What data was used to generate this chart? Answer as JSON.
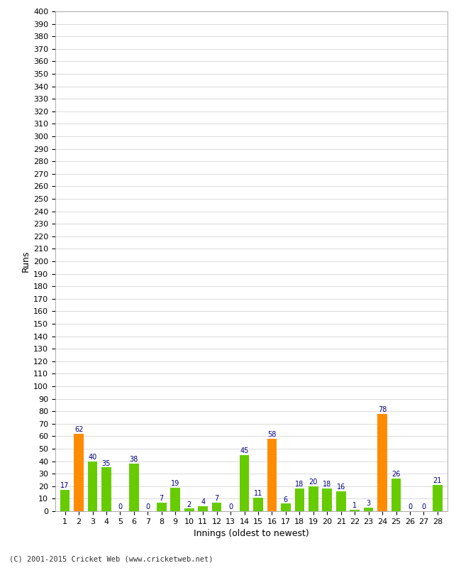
{
  "values": [
    17,
    62,
    40,
    35,
    0,
    38,
    0,
    7,
    19,
    2,
    4,
    7,
    0,
    45,
    11,
    58,
    6,
    18,
    20,
    18,
    16,
    1,
    3,
    78,
    26,
    0,
    0,
    21
  ],
  "innings": [
    1,
    2,
    3,
    4,
    5,
    6,
    7,
    8,
    9,
    10,
    11,
    12,
    13,
    14,
    15,
    16,
    17,
    18,
    19,
    20,
    21,
    22,
    23,
    24,
    25,
    26,
    27,
    28
  ],
  "orange_color": "#FF8C00",
  "green_color": "#66CC00",
  "label_color": "#000080",
  "bg_color": "#FFFFFF",
  "grid_color": "#CCCCCC",
  "xlabel": "Innings (oldest to newest)",
  "ylabel": "Runs",
  "ylim": [
    0,
    400
  ],
  "ytick_step": 10,
  "footer": "(C) 2001-2015 Cricket Web (www.cricketweb.net)"
}
